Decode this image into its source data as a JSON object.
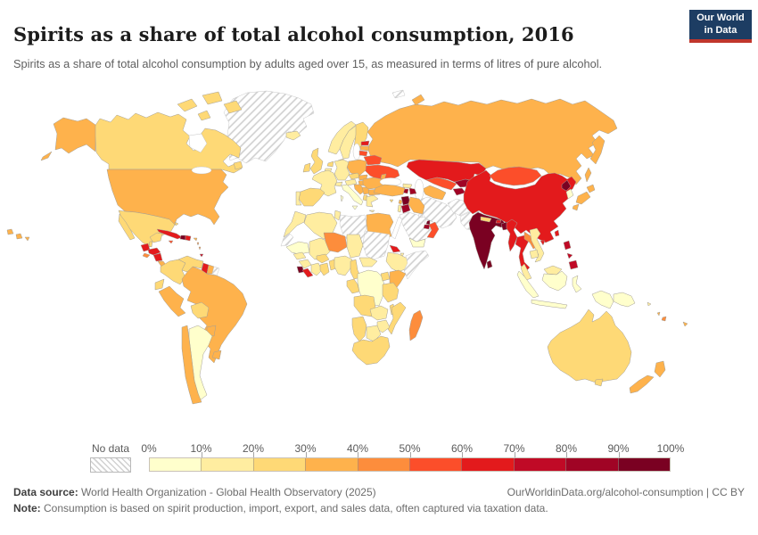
{
  "header": {
    "title": "Spirits as a share of total alcohol consumption, 2016",
    "subtitle": "Spirits as a share of total alcohol consumption by adults aged over 15, as measured in terms of litres of pure alcohol.",
    "logo": {
      "line1": "Our World",
      "line2": "in Data",
      "bg_color": "#1d3d63",
      "accent_color": "#c0362c"
    }
  },
  "legend": {
    "no_data_label": "No data",
    "tick_labels": [
      "0%",
      "10%",
      "20%",
      "30%",
      "40%",
      "50%",
      "60%",
      "70%",
      "80%",
      "90%",
      "100%"
    ]
  },
  "footer": {
    "source_label": "Data source:",
    "source_text": " World Health Organization - Global Health Observatory (2025)",
    "link_text": "OurWorldinData.org/alcohol-consumption | CC BY",
    "note_label": "Note:",
    "note_text": " Consumption is based on spirit production, import, export, and sales data, often captured via taxation data."
  },
  "chart_data": {
    "type": "choropleth_map",
    "title": "Spirits as a share of total alcohol consumption",
    "year": 2016,
    "unit": "% of total alcohol consumption",
    "legend_position": "bottom",
    "bin_labels": [
      "0-10%",
      "10-20%",
      "20-30%",
      "30-40%",
      "40-50%",
      "50-60%",
      "60-70%",
      "70-80%",
      "80-90%",
      "90-100%"
    ],
    "bin_colors": [
      "#FFFFCC",
      "#FFEDA0",
      "#FED976",
      "#FEB24C",
      "#FD8D3C",
      "#FC4E2A",
      "#E31A1C",
      "#C00A26",
      "#A00425",
      "#7A0122"
    ],
    "no_data_style": "hatched",
    "border_color": "#a39e95",
    "countries": [
      {
        "name": "Greenland",
        "bin": 0
      },
      {
        "name": "Svalbard",
        "bin": 0
      },
      {
        "name": "Western Sahara",
        "bin": 0
      },
      {
        "name": "Libya",
        "bin": 0
      },
      {
        "name": "Sudan",
        "bin": 0
      },
      {
        "name": "Somalia",
        "bin": 0
      },
      {
        "name": "Saudi Arabia",
        "bin": 0
      },
      {
        "name": "Kuwait",
        "bin": 0
      },
      {
        "name": "Iran",
        "bin": 0
      },
      {
        "name": "Afghanistan",
        "bin": 0
      },
      {
        "name": "Pakistan",
        "bin": 0
      },
      {
        "name": "French Guiana",
        "bin": 0
      },
      {
        "name": "Argentina",
        "bin": 1
      },
      {
        "name": "Italy",
        "bin": 1
      },
      {
        "name": "Democratic Republic of Congo",
        "bin": 1
      },
      {
        "name": "Indonesia",
        "bin": 1
      },
      {
        "name": "Papua New Guinea",
        "bin": 1
      },
      {
        "name": "Yemen",
        "bin": 1
      },
      {
        "name": "Mauritania",
        "bin": 1
      },
      {
        "name": "South Korea",
        "bin": 1
      },
      {
        "name": "Iceland",
        "bin": 2
      },
      {
        "name": "Norway",
        "bin": 2
      },
      {
        "name": "Sweden",
        "bin": 2
      },
      {
        "name": "Denmark",
        "bin": 2
      },
      {
        "name": "France",
        "bin": 2
      },
      {
        "name": "Portugal",
        "bin": 2
      },
      {
        "name": "Germany",
        "bin": 2
      },
      {
        "name": "Switzerland",
        "bin": 2
      },
      {
        "name": "Austria",
        "bin": 2
      },
      {
        "name": "Belgium",
        "bin": 2
      },
      {
        "name": "Greece",
        "bin": 2
      },
      {
        "name": "Georgia",
        "bin": 2
      },
      {
        "name": "Israel",
        "bin": 2
      },
      {
        "name": "Morocco",
        "bin": 2
      },
      {
        "name": "Algeria",
        "bin": 2
      },
      {
        "name": "Tunisia",
        "bin": 2
      },
      {
        "name": "Mali",
        "bin": 2
      },
      {
        "name": "Chad",
        "bin": 2
      },
      {
        "name": "Senegal",
        "bin": 2
      },
      {
        "name": "Guinea",
        "bin": 2
      },
      {
        "name": "Cote d'Ivoire",
        "bin": 2
      },
      {
        "name": "Nigeria",
        "bin": 2
      },
      {
        "name": "Central African Republic",
        "bin": 2
      },
      {
        "name": "Ethiopia",
        "bin": 2
      },
      {
        "name": "Djibouti",
        "bin": 2
      },
      {
        "name": "Zambia",
        "bin": 2
      },
      {
        "name": "Zimbabwe",
        "bin": 2
      },
      {
        "name": "Botswana",
        "bin": 2
      },
      {
        "name": "Malaysia",
        "bin": 2
      },
      {
        "name": "Cambodia",
        "bin": 2
      },
      {
        "name": "Vietnam",
        "bin": 2
      },
      {
        "name": "Solomon Islands",
        "bin": 2
      },
      {
        "name": "United Kingdom",
        "bin": 3
      },
      {
        "name": "Ireland",
        "bin": 3
      },
      {
        "name": "Finland",
        "bin": 3
      },
      {
        "name": "Netherlands",
        "bin": 3
      },
      {
        "name": "Czechia",
        "bin": 3
      },
      {
        "name": "Spain",
        "bin": 3
      },
      {
        "name": "Albania",
        "bin": 3
      },
      {
        "name": "Cyprus",
        "bin": 3
      },
      {
        "name": "Canada",
        "bin": 3
      },
      {
        "name": "Mexico",
        "bin": 3
      },
      {
        "name": "Belize",
        "bin": 3
      },
      {
        "name": "Bahamas",
        "bin": 3
      },
      {
        "name": "Colombia",
        "bin": 3
      },
      {
        "name": "Venezuela",
        "bin": 3
      },
      {
        "name": "Ecuador",
        "bin": 3
      },
      {
        "name": "Bolivia",
        "bin": 3
      },
      {
        "name": "Ghana",
        "bin": 3
      },
      {
        "name": "Burkina Faso",
        "bin": 3
      },
      {
        "name": "Benin",
        "bin": 3
      },
      {
        "name": "Cameroon",
        "bin": 3
      },
      {
        "name": "Uganda",
        "bin": 3
      },
      {
        "name": "Tanzania",
        "bin": 3
      },
      {
        "name": "Congo",
        "bin": 3
      },
      {
        "name": "Angola",
        "bin": 3
      },
      {
        "name": "Malawi",
        "bin": 3
      },
      {
        "name": "Mozambique",
        "bin": 3
      },
      {
        "name": "Namibia",
        "bin": 3
      },
      {
        "name": "South Africa",
        "bin": 3
      },
      {
        "name": "Australia",
        "bin": 3
      },
      {
        "name": "Nepal",
        "bin": 3
      },
      {
        "name": "United States",
        "bin": 4
      },
      {
        "name": "Poland",
        "bin": 4
      },
      {
        "name": "Slovakia",
        "bin": 4
      },
      {
        "name": "Hungary",
        "bin": 4
      },
      {
        "name": "Romania",
        "bin": 4
      },
      {
        "name": "Bulgaria",
        "bin": 4
      },
      {
        "name": "Moldova",
        "bin": 4
      },
      {
        "name": "Croatia",
        "bin": 4
      },
      {
        "name": "Serbia",
        "bin": 4
      },
      {
        "name": "Latvia",
        "bin": 4
      },
      {
        "name": "Russia",
        "bin": 4
      },
      {
        "name": "Turkey",
        "bin": 4
      },
      {
        "name": "Turkmenistan",
        "bin": 4
      },
      {
        "name": "Egypt",
        "bin": 4
      },
      {
        "name": "Iraq",
        "bin": 4
      },
      {
        "name": "Kenya",
        "bin": 4
      },
      {
        "name": "Brazil",
        "bin": 4
      },
      {
        "name": "Peru",
        "bin": 4
      },
      {
        "name": "Paraguay",
        "bin": 4
      },
      {
        "name": "Chile",
        "bin": 4
      },
      {
        "name": "Uruguay",
        "bin": 4
      },
      {
        "name": "Suriname",
        "bin": 4
      },
      {
        "name": "Costa Rica",
        "bin": 4
      },
      {
        "name": "Panama",
        "bin": 4
      },
      {
        "name": "Puerto Rico",
        "bin": 4
      },
      {
        "name": "New Zealand",
        "bin": 4
      },
      {
        "name": "Lebanon",
        "bin": 4
      },
      {
        "name": "Vanuatu",
        "bin": 4
      },
      {
        "name": "New Caledonia",
        "bin": 4
      },
      {
        "name": "Japan",
        "bin": 4
      },
      {
        "name": "Niger",
        "bin": 5
      },
      {
        "name": "Madagascar",
        "bin": 5
      },
      {
        "name": "Laos",
        "bin": 5
      },
      {
        "name": "El Salvador",
        "bin": 5
      },
      {
        "name": "Fiji",
        "bin": 5
      },
      {
        "name": "Barbados",
        "bin": 5
      },
      {
        "name": "Dominica",
        "bin": 5
      },
      {
        "name": "Belarus",
        "bin": 6
      },
      {
        "name": "Ukraine",
        "bin": 6
      },
      {
        "name": "Lithuania",
        "bin": 6
      },
      {
        "name": "Uzbekistan",
        "bin": 6
      },
      {
        "name": "Mongolia",
        "bin": 6
      },
      {
        "name": "Oman",
        "bin": 6
      },
      {
        "name": "Jamaica",
        "bin": 6
      },
      {
        "name": "China",
        "bin": 7
      },
      {
        "name": "Kazakhstan",
        "bin": 7
      },
      {
        "name": "Estonia",
        "bin": 7
      },
      {
        "name": "Cuba",
        "bin": 7
      },
      {
        "name": "Dominican Republic",
        "bin": 7
      },
      {
        "name": "Guyana",
        "bin": 7
      },
      {
        "name": "Guatemala",
        "bin": 7
      },
      {
        "name": "Honduras",
        "bin": 7
      },
      {
        "name": "Nicaragua",
        "bin": 7
      },
      {
        "name": "Eritrea",
        "bin": 7
      },
      {
        "name": "Liberia",
        "bin": 7
      },
      {
        "name": "Taiwan",
        "bin": 7
      },
      {
        "name": "Myanmar",
        "bin": 7
      },
      {
        "name": "Thailand",
        "bin": 7
      },
      {
        "name": "Bhutan",
        "bin": 7
      },
      {
        "name": "Hainan",
        "bin": 7
      },
      {
        "name": "Philippines",
        "bin": 8
      },
      {
        "name": "Trinidad and Tobago",
        "bin": 8
      },
      {
        "name": "Armenia",
        "bin": 9
      },
      {
        "name": "Azerbaijan",
        "bin": 9
      },
      {
        "name": "Kyrgyzstan",
        "bin": 9
      },
      {
        "name": "Tajikistan",
        "bin": 9
      },
      {
        "name": "United Arab Emirates",
        "bin": 9
      },
      {
        "name": "Jordan",
        "bin": 9
      },
      {
        "name": "India",
        "bin": 10
      },
      {
        "name": "Bangladesh",
        "bin": 10
      },
      {
        "name": "Sri Lanka",
        "bin": 10
      },
      {
        "name": "North Korea",
        "bin": 10
      },
      {
        "name": "Haiti",
        "bin": 10
      },
      {
        "name": "Sierra Leone",
        "bin": 10
      },
      {
        "name": "Syria",
        "bin": 10
      },
      {
        "name": "Qatar",
        "bin": 10
      }
    ]
  }
}
